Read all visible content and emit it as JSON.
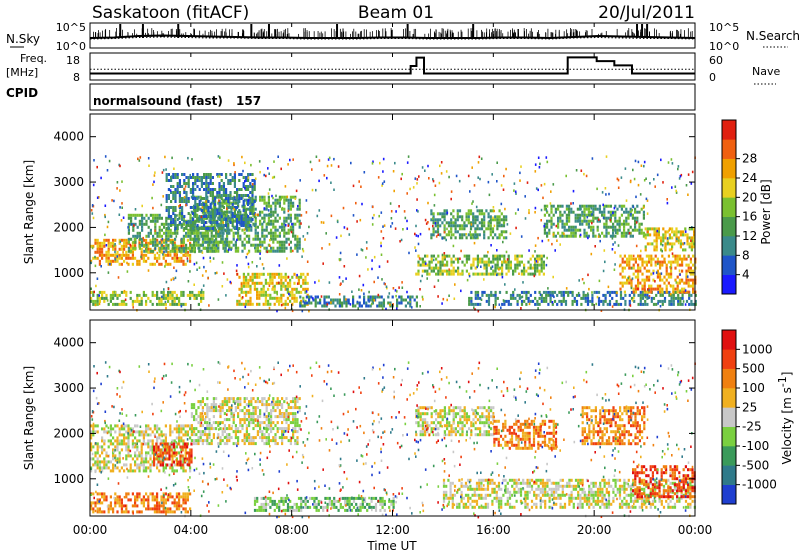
{
  "header": {
    "station": "Saskatoon (fitACF)",
    "beam": "Beam 01",
    "date": "20/Jul/2011"
  },
  "noise_panel": {
    "left_label": "N.Sky",
    "right_label": "N.Search",
    "left_ticks": [
      "10^5",
      "10^0"
    ],
    "right_ticks": [
      "10^5",
      "10^0"
    ],
    "sky_level": [
      2.0,
      2.1,
      2.4,
      2.5,
      2.4,
      2.3,
      2.2,
      2.1,
      2.1,
      2.0,
      2.0,
      2.0,
      2.1,
      2.1,
      2.0,
      2.0,
      2.0,
      2.1,
      2.1,
      2.0,
      2.2,
      2.4,
      2.3,
      2.2,
      2.1,
      2.0
    ],
    "search_level": [
      1.8,
      1.9,
      2.1,
      2.2,
      2.1,
      2.0,
      2.0,
      1.9,
      1.9,
      1.8,
      1.8,
      1.8,
      1.9,
      1.9,
      1.8,
      1.8,
      1.8,
      1.9,
      1.9,
      1.8,
      2.0,
      2.1,
      2.0,
      1.9,
      1.9,
      1.8
    ],
    "spikes": [
      1.2,
      2.1,
      3.5,
      6.4,
      7.1,
      9.8,
      12.6,
      15.2,
      21.7,
      21.9,
      22.1
    ]
  },
  "freq_panel": {
    "left_label_1": "Freq.",
    "left_label_2": "[MHz]",
    "right_label": "Nave",
    "left_ticks": [
      "18",
      "8"
    ],
    "right_ticks": [
      "60",
      "0"
    ],
    "freq_ylim": [
      8,
      18
    ],
    "nave_ylim": [
      0,
      60
    ],
    "freq_steps": [
      {
        "t": 0.0,
        "f": 10.4
      },
      {
        "t": 12.72,
        "f": 13.2
      },
      {
        "t": 12.95,
        "f": 16.3
      },
      {
        "t": 13.25,
        "f": 10.4
      },
      {
        "t": 18.95,
        "f": 16.4
      },
      {
        "t": 20.1,
        "f": 15.0
      },
      {
        "t": 20.8,
        "f": 13.4
      },
      {
        "t": 21.5,
        "f": 10.4
      },
      {
        "t": 24.0,
        "f": 10.4
      }
    ],
    "nave_level": 24
  },
  "cpid": {
    "label": "CPID",
    "mode": "normalsound (fast)",
    "number": "157"
  },
  "power_panel": {
    "ylabel": "Slant Range [km]",
    "yticks": [
      "1000",
      "2000",
      "3000",
      "4000"
    ],
    "colorbar_label": "Power [dB]",
    "colorbar_ticks": [
      "4",
      "8",
      "12",
      "16",
      "20",
      "24",
      "28"
    ],
    "colors": [
      "#1a1aff",
      "#1f55c8",
      "#3a8a8a",
      "#4a9a4a",
      "#7ac030",
      "#e8d020",
      "#f0a000",
      "#f06010",
      "#e02010"
    ]
  },
  "velocity_panel": {
    "ylabel": "Slant Range [km]",
    "yticks": [
      "1000",
      "2000",
      "3000",
      "4000"
    ],
    "colorbar_label": "Velocity [m s",
    "colorbar_sup": "-1",
    "colorbar_label_end": "]",
    "colorbar_ticks": [
      "1000",
      "500",
      "100",
      "25",
      "-25",
      "-100",
      "-500",
      "-1000"
    ],
    "colors": [
      "#1f3fd0",
      "#2f7a8a",
      "#3a9a5a",
      "#7ad040",
      "#c8c8c8",
      "#f0b020",
      "#f08010",
      "#f04010",
      "#e01010"
    ]
  },
  "time_axis": {
    "xlabel": "Time UT",
    "ticks": [
      "00:00",
      "04:00",
      "08:00",
      "12:00",
      "16:00",
      "20:00",
      "00:00"
    ]
  },
  "chart_data": [
    {
      "type": "heatmap",
      "title": "Saskatoon (fitACF) Beam 01 20/Jul/2011",
      "quantity": "Power",
      "xlabel": "Time UT",
      "ylabel": "Slant Range [km]",
      "xlim": [
        "00:00",
        "00:00"
      ],
      "ylim": [
        180,
        4500
      ],
      "zlim": [
        0,
        30
      ],
      "zunit": "dB",
      "bands": [
        {
          "t0": 0.0,
          "t1": 4.0,
          "r0": 1200,
          "r1": 1750,
          "z": 22
        },
        {
          "t0": 0.0,
          "t1": 4.5,
          "r0": 300,
          "r1": 600,
          "z": 14
        },
        {
          "t0": 1.5,
          "t1": 5.5,
          "r0": 1500,
          "r1": 2300,
          "z": 12
        },
        {
          "t0": 4.0,
          "t1": 8.3,
          "r0": 1500,
          "r1": 2700,
          "z": 10
        },
        {
          "t0": 5.8,
          "t1": 8.6,
          "r0": 300,
          "r1": 1000,
          "z": 20
        },
        {
          "t0": 8.3,
          "t1": 13.0,
          "r0": 280,
          "r1": 500,
          "z": 8
        },
        {
          "t0": 3.0,
          "t1": 6.5,
          "r0": 2000,
          "r1": 3200,
          "z": 6
        },
        {
          "t0": 12.9,
          "t1": 18.0,
          "r0": 950,
          "r1": 1400,
          "z": 14
        },
        {
          "t0": 13.5,
          "t1": 16.5,
          "r0": 1800,
          "r1": 2400,
          "z": 12
        },
        {
          "t0": 15.0,
          "t1": 24.0,
          "r0": 300,
          "r1": 600,
          "z": 8
        },
        {
          "t0": 18.0,
          "t1": 22.0,
          "r0": 1800,
          "r1": 2500,
          "z": 10
        },
        {
          "t0": 21.0,
          "t1": 24.0,
          "r0": 600,
          "r1": 1400,
          "z": 22
        },
        {
          "t0": 22.0,
          "t1": 24.0,
          "r0": 1500,
          "r1": 2000,
          "z": 18
        }
      ]
    },
    {
      "type": "heatmap",
      "title": "Saskatoon (fitACF) Beam 01 20/Jul/2011",
      "quantity": "Velocity",
      "xlabel": "Time UT",
      "ylabel": "Slant Range [km]",
      "xlim": [
        "00:00",
        "00:00"
      ],
      "ylim": [
        180,
        4500
      ],
      "zlim": [
        -1000,
        1000
      ],
      "zunit": "m s-1",
      "bands": [
        {
          "t0": 0.0,
          "t1": 4.0,
          "r0": 1200,
          "r1": 2200,
          "z": 0
        },
        {
          "t0": 0.0,
          "t1": 4.0,
          "r0": 300,
          "r1": 700,
          "z": -100
        },
        {
          "t0": 2.5,
          "t1": 4.0,
          "r0": 1300,
          "r1": 1800,
          "z": -500
        },
        {
          "t0": 4.0,
          "t1": 8.3,
          "r0": 1800,
          "r1": 2800,
          "z": 0
        },
        {
          "t0": 6.5,
          "t1": 12.0,
          "r0": 280,
          "r1": 600,
          "z": 60
        },
        {
          "t0": 12.9,
          "t1": 16.0,
          "r0": 2000,
          "r1": 2600,
          "z": 0
        },
        {
          "t0": 16.0,
          "t1": 18.5,
          "r0": 1700,
          "r1": 2300,
          "z": -300
        },
        {
          "t0": 19.5,
          "t1": 22.0,
          "r0": 1800,
          "r1": 2600,
          "z": -400
        },
        {
          "t0": 14.0,
          "t1": 24.0,
          "r0": 400,
          "r1": 1000,
          "z": 0
        },
        {
          "t0": 21.5,
          "t1": 24.0,
          "r0": 600,
          "r1": 1300,
          "z": -700
        }
      ]
    }
  ]
}
